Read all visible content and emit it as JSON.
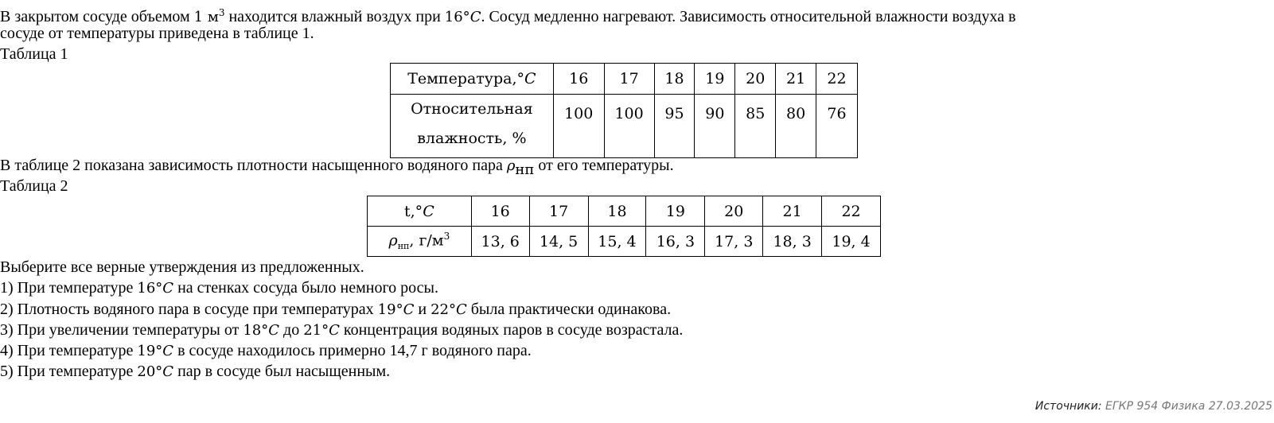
{
  "intro": {
    "l1_a": "В закрытом сосуде объемом ",
    "l1_m1": "1 м",
    "l1_m1_sup": "3",
    "l1_b": " находится влажный воздух при ",
    "l1_m2": "16°",
    "l1_m2_var": "C",
    "l1_c": ". Сосуд медленно нагревают. Зависимость относительной влажности воздуха в",
    "l2": "сосуде от температуры приведена в таблице 1.",
    "l3": "Таблица 1"
  },
  "table1": {
    "row1_header": "Температура,°",
    "row1_header_var": "C",
    "row2_header_1": "Относительная",
    "row2_header_2": "влажность, %",
    "temps": [
      "16",
      "17",
      "18",
      "19",
      "20",
      "21",
      "22"
    ],
    "humidity": [
      "100",
      "100",
      "95",
      "90",
      "85",
      "80",
      "76"
    ]
  },
  "middle": {
    "l1_a": "В таблице 2 показана зависимость плотности насыщенного водяного пара ",
    "l1_rho": "ρ",
    "l1_rho_sub": "нп",
    "l1_b": " от его температуры.",
    "l2": "Таблица 2"
  },
  "table2": {
    "row1_header": "t,°",
    "row1_header_var": "C",
    "row2_header_rho": "ρ",
    "row2_header_sub": "нп",
    "row2_header_unit": ",  г/м",
    "row2_header_sup": "3",
    "temps": [
      "16",
      "17",
      "18",
      "19",
      "20",
      "21",
      "22"
    ],
    "density": [
      "13, 6",
      "14, 5",
      "15, 4",
      "16, 3",
      "17, 3",
      "18, 3",
      "19, 4"
    ]
  },
  "question": {
    "prompt": "Выберите все верные утверждения из предложенных.",
    "s1": {
      "a": "1) При температуре ",
      "m": "16°",
      "v": "C",
      "b": " на стенках сосуда было немного росы."
    },
    "s2": {
      "a": "2) Плотность водяного пара в сосуде при температурах ",
      "m": "19°",
      "v": "C",
      "c": " и ",
      "m2": "22°",
      "v2": "C",
      "b": " была практически одинакова."
    },
    "s3": {
      "a": "3) При увеличении температуры от ",
      "m": "18°",
      "v": "C",
      "c": " до ",
      "m2": "21°",
      "v2": "C",
      "b": " концентрация водяных паров в сосуде возрастала."
    },
    "s4": {
      "a": "4) При температуре ",
      "m": "19°",
      "v": "C",
      "b": " в сосуде находилось примерно 14,7 г водяного пара."
    },
    "s5": {
      "a": "5) При температуре ",
      "m": "20°",
      "v": "C",
      "b": " пар в сосуде был насыщенным."
    }
  },
  "source": {
    "label": "Источники:",
    "value": " ЕГКР 954 Физика 27.03.2025"
  }
}
